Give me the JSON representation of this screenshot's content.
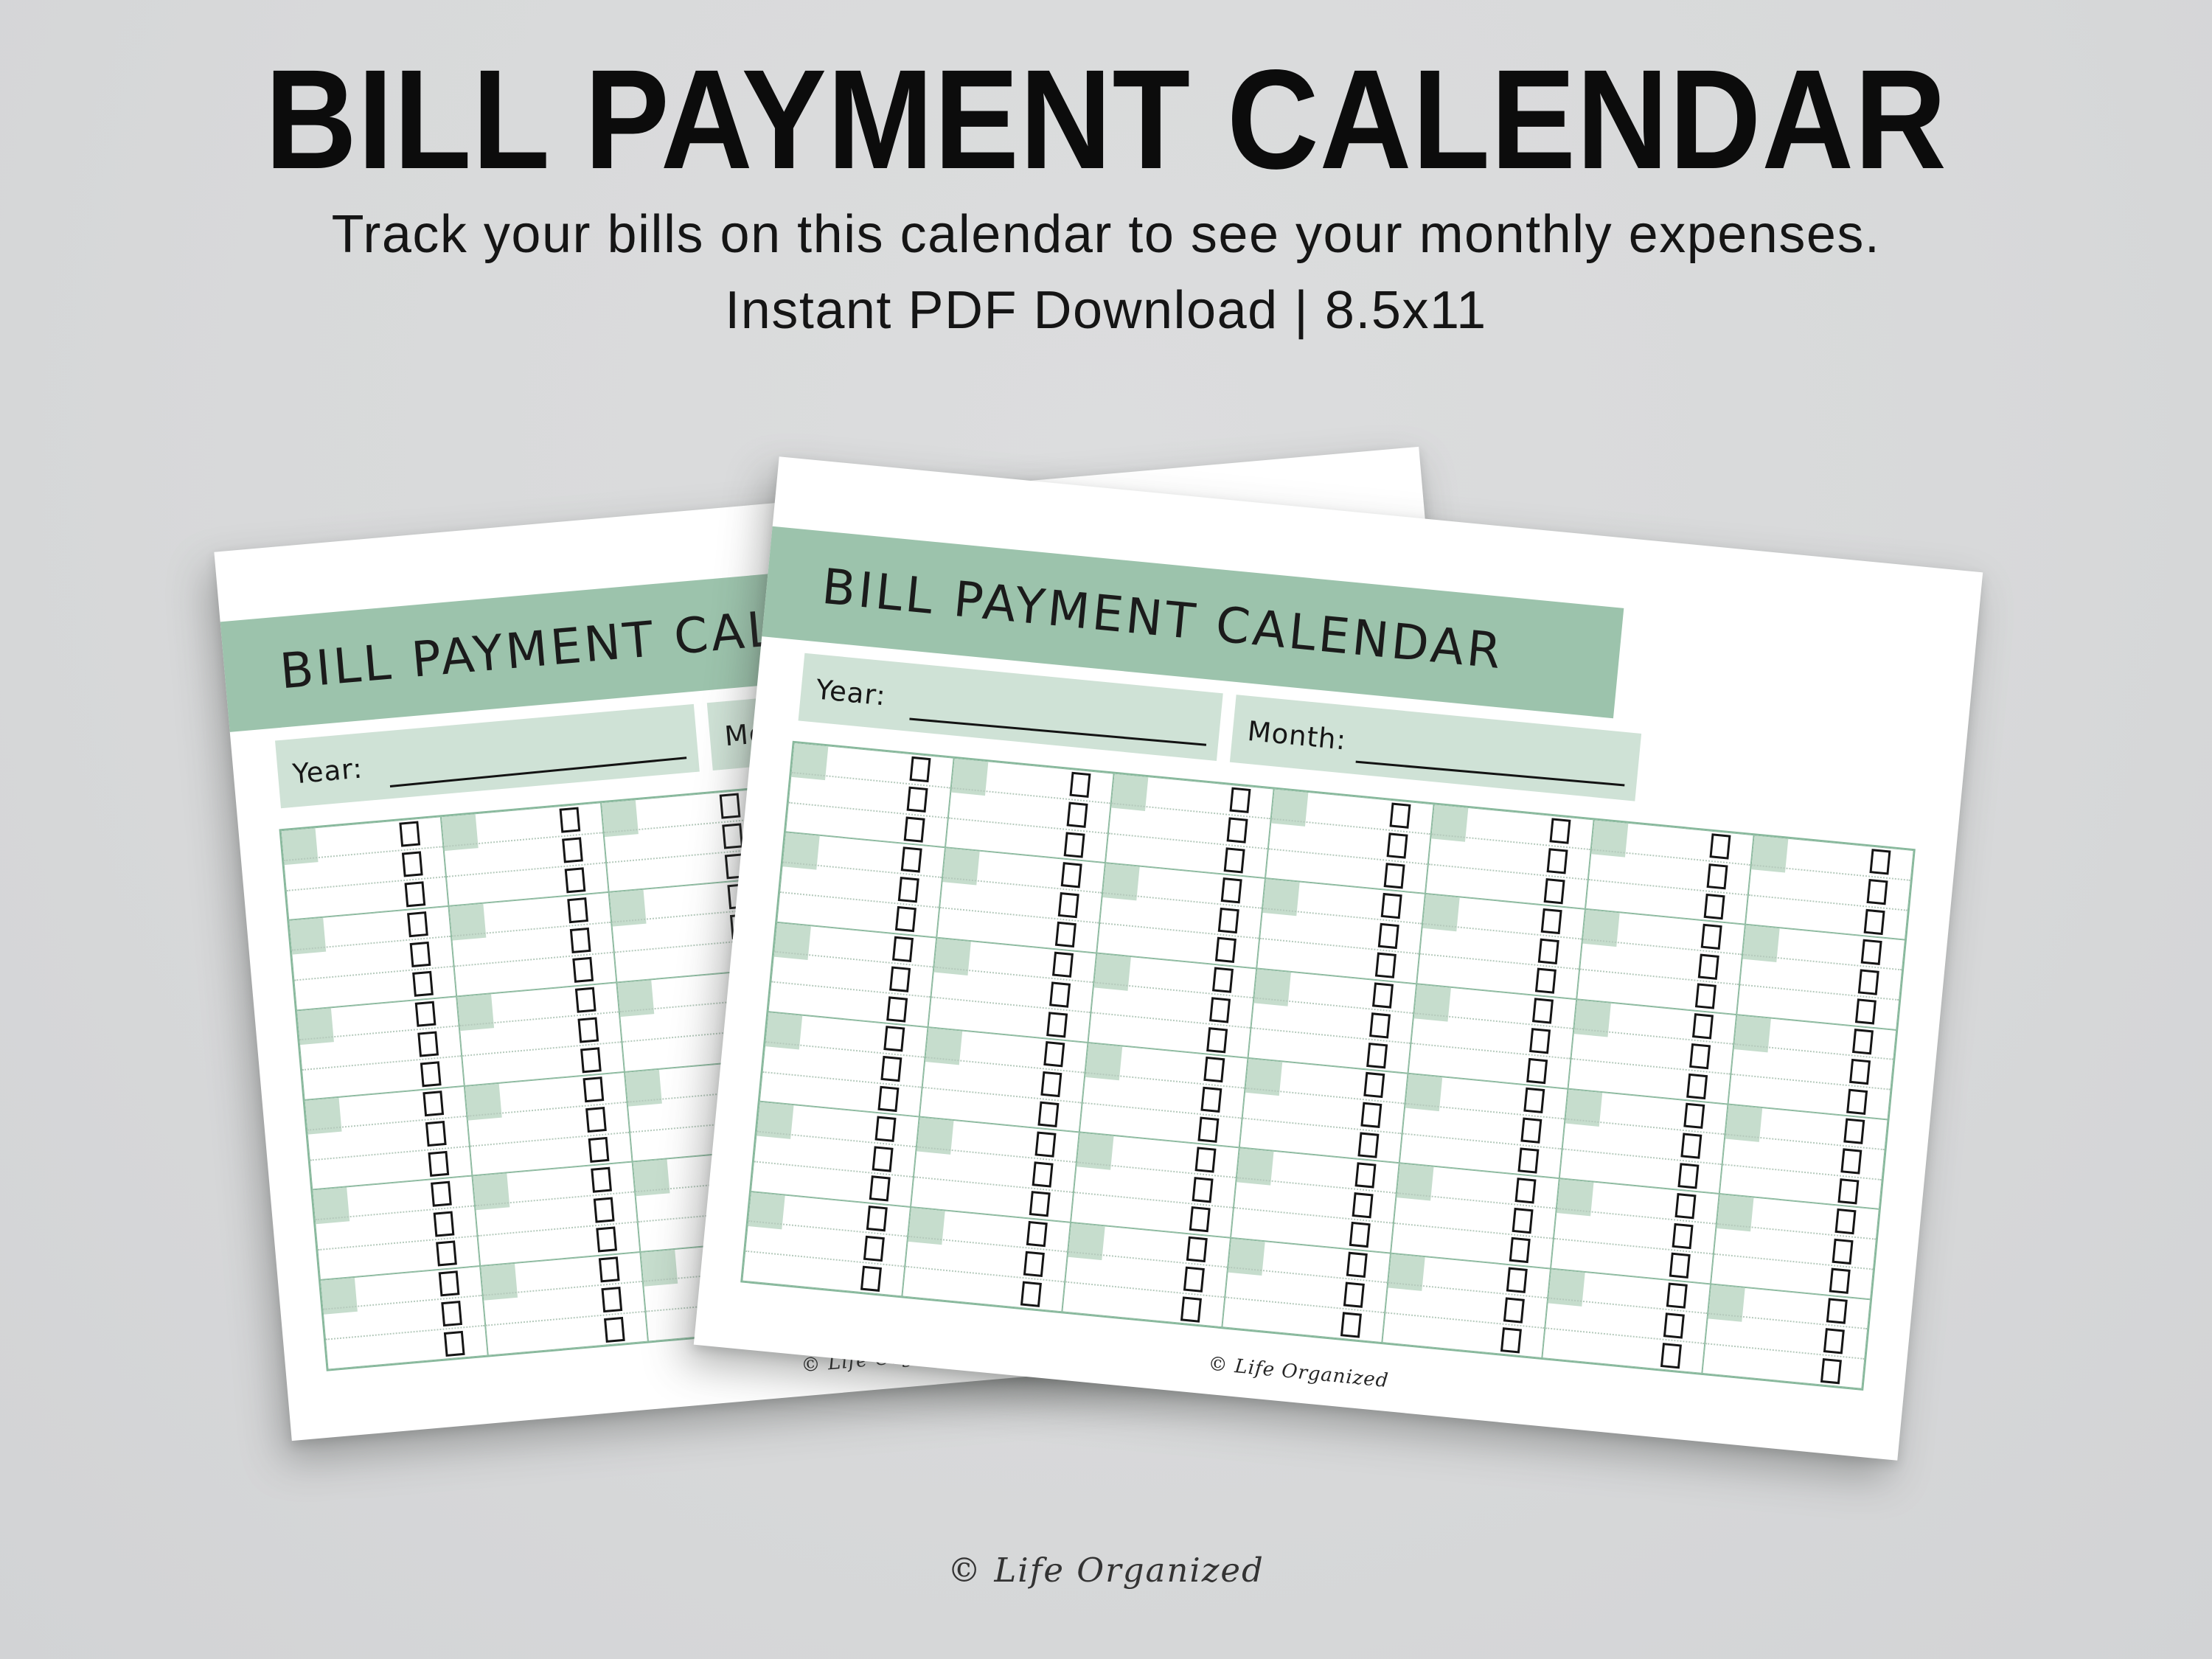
{
  "promo": {
    "title": "BILL PAYMENT CALENDAR",
    "subtitle_line1": "Track your bills on this calendar to see your monthly expenses.",
    "subtitle_line2": "Instant PDF Download | 8.5x11"
  },
  "sheet": {
    "title": "BILL PAYMENT CALENDAR",
    "year_label": "Year:",
    "month_label": "Month:",
    "credit": "© Life Organized",
    "grid": {
      "columns": 7,
      "rows": 6,
      "lines_per_cell": 3,
      "checkbox_per_line": true
    }
  },
  "watermark": "© Life Organized",
  "colors": {
    "background_gray": "#d8d9da",
    "paper_white": "#ffffff",
    "title_bar_green": "#9cc3ac",
    "field_strip_green": "#cfe2d6",
    "day_box_green": "#c6ddcd",
    "grid_line_green": "#85b79a",
    "text_dark": "#141414"
  }
}
